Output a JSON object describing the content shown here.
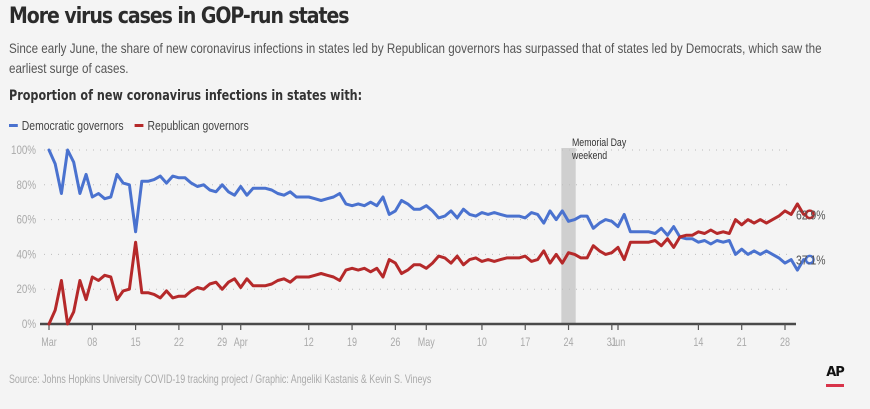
{
  "header": {
    "title": "More virus cases in GOP-run states",
    "subtitle": "Since early June, the share of new coronavirus infections in states led by Republican governors has surpassed that of states led by Democrats, which saw the earliest surge of cases.",
    "chart_heading": "Proportion of new coronavirus infections in states with:"
  },
  "legend": [
    {
      "label": "Democratic governors",
      "color": "#4a72cf"
    },
    {
      "label": "Republican governors",
      "color": "#b5292a"
    }
  ],
  "footer": {
    "source": "Source: Johns Hopkins University COVID-19 tracking project / Graphic: Angeliki Kastanis & Kevin S. Vineys",
    "logo": "AP"
  },
  "chart_data": {
    "type": "line",
    "title": "Proportion of new coronavirus infections in states with:",
    "xlabel": "",
    "ylabel": "",
    "ylim": [
      0,
      100
    ],
    "y_ticks": [
      0,
      20,
      40,
      60,
      80,
      100
    ],
    "y_tick_labels": [
      "0%",
      "20%",
      "40%",
      "60%",
      "80%",
      "100%"
    ],
    "grid": "horizontal dotted",
    "legend_position": "top-left",
    "x_start": "Mar 1",
    "x_end": "Jun 28",
    "x_ticks_day_index": [
      0,
      7,
      14,
      21,
      28,
      31,
      42,
      49,
      56,
      61,
      70,
      77,
      84,
      91,
      92,
      105,
      112,
      119
    ],
    "x_tick_labels": [
      "Mar",
      "08",
      "15",
      "22",
      "29",
      "Apr",
      "12",
      "19",
      "26",
      "May",
      "10",
      "17",
      "24",
      "31",
      "Jun",
      "14",
      "21",
      "28"
    ],
    "annotation": {
      "label_line1": "Memorial Day",
      "label_line2": "weekend",
      "start_day_index": 83,
      "end_day_index": 85
    },
    "end_labels": {
      "Democratic governors": "37.1%",
      "Republican governors": "62.9%"
    },
    "series": [
      {
        "name": "Democratic governors",
        "color": "#4a72cf",
        "values": [
          100,
          92,
          75,
          100,
          93,
          75,
          86,
          73,
          75,
          72,
          73,
          86,
          81,
          80,
          53,
          82,
          82,
          83,
          85,
          81,
          85,
          84,
          84,
          81,
          79,
          80,
          77,
          76,
          80,
          76,
          74,
          79,
          74,
          78,
          78,
          78,
          77,
          75,
          74,
          76,
          73,
          73,
          73,
          72,
          71,
          72,
          73,
          75,
          69,
          68,
          69,
          68,
          70,
          68,
          73,
          63,
          65,
          71,
          69,
          66,
          66,
          68,
          65,
          61,
          62,
          65,
          61,
          66,
          63,
          62,
          64,
          63,
          64,
          63,
          62,
          62,
          62,
          61,
          64,
          63,
          58,
          65,
          60,
          65,
          59,
          60,
          62,
          62,
          55,
          58,
          60,
          59,
          56,
          63,
          53,
          53,
          53,
          53,
          52,
          55,
          51,
          56,
          50,
          49,
          49,
          47,
          48,
          46,
          48,
          47,
          48,
          40,
          43,
          40,
          42,
          40,
          42,
          40,
          38,
          35,
          37,
          31,
          37,
          37
        ]
      },
      {
        "name": "Republican governors",
        "color": "#b5292a",
        "values": [
          0,
          8,
          25,
          0,
          7,
          25,
          14,
          27,
          25,
          28,
          27,
          14,
          19,
          20,
          47,
          18,
          18,
          17,
          15,
          19,
          15,
          16,
          16,
          19,
          21,
          20,
          23,
          24,
          20,
          24,
          26,
          21,
          26,
          22,
          22,
          22,
          23,
          25,
          26,
          24,
          27,
          27,
          27,
          28,
          29,
          28,
          27,
          25,
          31,
          32,
          31,
          32,
          30,
          32,
          27,
          37,
          35,
          29,
          31,
          34,
          34,
          32,
          35,
          39,
          38,
          35,
          39,
          34,
          37,
          38,
          36,
          37,
          36,
          37,
          38,
          38,
          38,
          39,
          36,
          37,
          42,
          35,
          40,
          35,
          41,
          40,
          38,
          38,
          45,
          42,
          40,
          41,
          44,
          37,
          47,
          47,
          47,
          47,
          48,
          45,
          49,
          44,
          50,
          51,
          51,
          53,
          52,
          54,
          52,
          53,
          52,
          60,
          57,
          60,
          58,
          60,
          58,
          60,
          62,
          65,
          63,
          69,
          63,
          63
        ]
      }
    ]
  }
}
